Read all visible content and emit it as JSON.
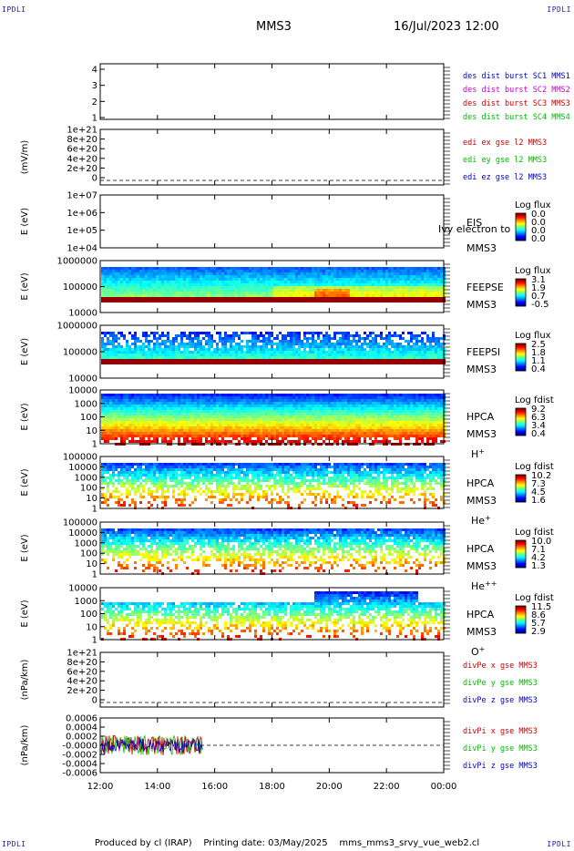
{
  "corner_tags": {
    "tl": "IPDLI",
    "tr": "IPDLI",
    "bl": "IPDLI",
    "br": "IPDLI"
  },
  "header": {
    "title": "MMS3",
    "datetime": "16/Jul/2023 12:00"
  },
  "footer": {
    "producer": "Produced by cl (IRAP)",
    "printed": "Printing date: 03/May/2025",
    "script": "mms_mms3_srvy_vue_web2.cl"
  },
  "x_axis": {
    "ticks": [
      "12:00",
      "14:00",
      "16:00",
      "18:00",
      "20:00",
      "22:00",
      "00:00"
    ]
  },
  "colors": {
    "red": "#cc0000",
    "green": "#00bb00",
    "blue": "#0000cc",
    "magenta": "#cc00cc"
  },
  "chart_data": [
    {
      "type": "line",
      "ylabel": "",
      "ticks": [
        "4",
        "3",
        "2",
        "1"
      ],
      "legend": [
        {
          "text": "des dist burst SC1 MMS1",
          "color": "#0000cc"
        },
        {
          "text": "des dist burst SC2 MMS2",
          "color": "#cc00cc"
        },
        {
          "text": "des dist burst SC3 MMS3",
          "color": "#cc0000"
        },
        {
          "text": "des dist burst SC4 MMS4",
          "color": "#00bb00"
        }
      ]
    },
    {
      "type": "line",
      "ylabel": "(mV/m)",
      "ticks": [
        "1e+21",
        "8e+20",
        "6e+20",
        "4e+20",
        "2e+20",
        "0"
      ],
      "legend": [
        {
          "text": "edi ex gse l2 MMS3",
          "color": "#cc0000"
        },
        {
          "text": "edi ey gse l2 MMS3",
          "color": "#00bb00"
        },
        {
          "text": "edi ez gse l2 MMS3",
          "color": "#0000cc"
        }
      ]
    },
    {
      "type": "heatmap",
      "ylabel": "E (eV)",
      "ticks": [
        "1e+07",
        "1e+06",
        "1e+05",
        "1e+04"
      ],
      "labels": [
        "EIS",
        "MMS3"
      ],
      "overlay": "Ivy electron to",
      "cbar": {
        "title": "Log flux",
        "values": [
          "0.0",
          "0.0",
          "0.0",
          "0.0"
        ]
      }
    },
    {
      "type": "heatmap",
      "ylabel": "E (eV)",
      "ticks": [
        "1000000",
        "100000",
        "10000"
      ],
      "labels": [
        "FEEPSE",
        "MMS3"
      ],
      "cbar": {
        "title": "Log flux",
        "values": [
          "3.1",
          "1.9",
          "0.7",
          "-0.5"
        ]
      }
    },
    {
      "type": "heatmap",
      "ylabel": "E (eV)",
      "ticks": [
        "1000000",
        "100000",
        "10000"
      ],
      "labels": [
        "FEEPSI",
        "MMS3"
      ],
      "cbar": {
        "title": "Log flux",
        "values": [
          "2.5",
          "1.8",
          "1.1",
          "0.4"
        ]
      }
    },
    {
      "type": "heatmap",
      "ylabel": "E (eV)",
      "ticks": [
        "10000",
        "1000",
        "100",
        "10",
        "1"
      ],
      "labels": [
        "HPCA",
        "MMS3"
      ],
      "species": "H",
      "sup": "+",
      "cbar": {
        "title": "Log fdist",
        "values": [
          "9.2",
          "6.3",
          "3.4",
          "0.4"
        ]
      }
    },
    {
      "type": "heatmap",
      "ylabel": "E (eV)",
      "ticks": [
        "100000",
        "10000",
        "1000",
        "100",
        "10",
        "1"
      ],
      "labels": [
        "HPCA",
        "MMS3"
      ],
      "species": "He",
      "sup": "+",
      "cbar": {
        "title": "Log fdist",
        "values": [
          "10.2",
          "7.3",
          "4.5",
          "1.6"
        ]
      }
    },
    {
      "type": "heatmap",
      "ylabel": "E (eV)",
      "ticks": [
        "100000",
        "10000",
        "1000",
        "100",
        "10",
        "1"
      ],
      "labels": [
        "HPCA",
        "MMS3"
      ],
      "species": "He",
      "sup": "++",
      "cbar": {
        "title": "Log fdist",
        "values": [
          "10.0",
          "7.1",
          "4.2",
          "1.3"
        ]
      }
    },
    {
      "type": "heatmap",
      "ylabel": "E (eV)",
      "ticks": [
        "10000",
        "1000",
        "100",
        "10",
        "1"
      ],
      "labels": [
        "HPCA",
        "MMS3"
      ],
      "species": "O",
      "sup": "+",
      "cbar": {
        "title": "Log fdist",
        "values": [
          "11.5",
          "8.6",
          "5.7",
          "2.9"
        ]
      }
    },
    {
      "type": "line",
      "ylabel": "(nPa/km)",
      "ticks": [
        "1e+21",
        "8e+20",
        "6e+20",
        "4e+20",
        "2e+20",
        "0"
      ],
      "legend": [
        {
          "text": "divPe x gse MMS3",
          "color": "#cc0000"
        },
        {
          "text": "divPe y gse MMS3",
          "color": "#00bb00"
        },
        {
          "text": "divPe z gse MMS3",
          "color": "#0000cc"
        }
      ]
    },
    {
      "type": "line",
      "ylabel": "(nPa/km)",
      "ticks": [
        "0.0006",
        "0.0004",
        "0.0002",
        "-0.0000",
        "-0.0002",
        "-0.0004",
        "-0.0006"
      ],
      "legend": [
        {
          "text": "divPi x gse MMS3",
          "color": "#cc0000"
        },
        {
          "text": "divPi y gse MMS3",
          "color": "#00bb00"
        },
        {
          "text": "divPi z gse MMS3",
          "color": "#0000cc"
        }
      ]
    }
  ]
}
